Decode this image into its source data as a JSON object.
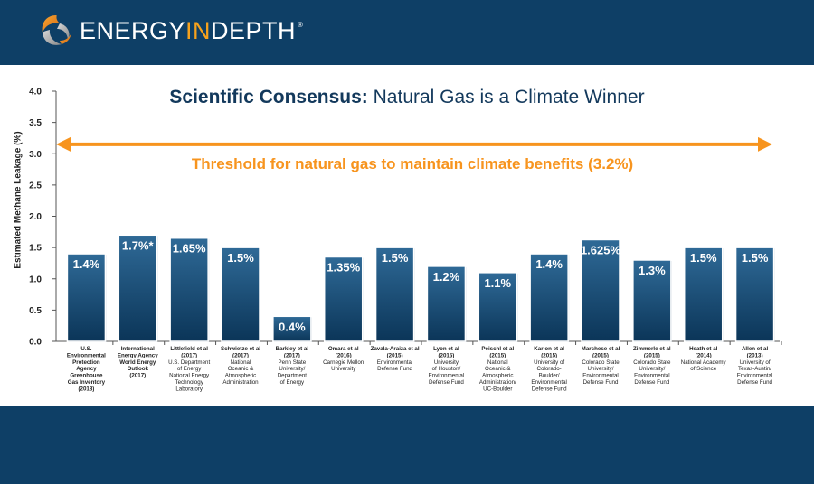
{
  "header": {
    "logo_parts": [
      "ENERGY",
      "IN",
      "DEPTH"
    ],
    "logo_registered": "®"
  },
  "chart_data": {
    "type": "bar",
    "title_bold": "Scientific Consensus:",
    "title_rest": "Natural Gas is a Climate Winner",
    "ylabel": "Estimated Methane Leakage (%)",
    "xlabel": "",
    "ylim": [
      0,
      4.0
    ],
    "yticks": [
      "0.0",
      "0.5",
      "1.0",
      "1.5",
      "2.0",
      "2.5",
      "3.0",
      "3.5",
      "4.0"
    ],
    "threshold": {
      "value": 3.15,
      "label": "Threshold for natural gas to maintain climate benefits (3.2%)"
    },
    "values": [
      1.4,
      1.7,
      1.65,
      1.5,
      0.4,
      1.35,
      1.5,
      1.2,
      1.1,
      1.4,
      1.625,
      1.3,
      1.5,
      1.5
    ],
    "data_labels": [
      "1.4%",
      "1.7%*",
      "1.65%",
      "1.5%",
      "0.4%",
      "1.35%",
      "1.5%",
      "1.2%",
      "1.1%",
      "1.4%",
      "1.625%",
      "1.3%",
      "1.5%",
      "1.5%"
    ],
    "categories": [
      [
        "U.S.",
        "Environmental",
        "Protection",
        "Agency",
        "Greenhouse",
        "Gas Inventory",
        "(2018)"
      ],
      [
        "International",
        "Energy Agency",
        "World Energy",
        "Outlook",
        "(2017)"
      ],
      [
        "Littlefield et al",
        "(2017)",
        "U.S. Department",
        "of Energy",
        "National Energy",
        "Technology",
        "Laboratory"
      ],
      [
        "Schwietze et al",
        "(2017)",
        "National",
        "Oceanic &",
        "Atmospheric",
        "Administration"
      ],
      [
        "Barkley et al",
        "(2017)",
        "Penn State",
        "University/",
        "Department",
        "of Energy"
      ],
      [
        "Omara et al",
        "(2016)",
        "Carnegie Mellon",
        "University"
      ],
      [
        "Zavala-Araiza et al",
        "(2015)",
        "Environmental",
        "Defense Fund"
      ],
      [
        "Lyon et al",
        "(2015)",
        "University",
        "of Houston/",
        "Environmental",
        "Defense Fund"
      ],
      [
        "Peischl et al",
        "(2015)",
        "National",
        "Oceanic &",
        "Atmospheric",
        "Administration/",
        "UC-Boulder"
      ],
      [
        "Karion et al",
        "(2015)",
        "University of",
        "Colorado-",
        "Boulder/",
        "Environmental",
        "Defense Fund"
      ],
      [
        "Marchese et al",
        "(2015)",
        "Colorado State",
        "University/",
        "Environmental",
        "Defense Fund"
      ],
      [
        "Zimmerle et al",
        "(2015)",
        "Colorado State",
        "University/",
        "Environmental",
        "Defense Fund"
      ],
      [
        "Heath et al",
        "(2014)",
        "National Academy",
        "of Science"
      ],
      [
        "Allen et al",
        "(2013)",
        "University of",
        "Texas-Austin/",
        "Environmental",
        "Defense Fund"
      ]
    ],
    "category_bold_lines": [
      7,
      5,
      2,
      2,
      2,
      2,
      2,
      2,
      2,
      2,
      2,
      2,
      2,
      2
    ],
    "colors": {
      "bar_top": "#2f6a97",
      "bar_bottom": "#0b3558",
      "threshold": "#f7941e",
      "band": "#0e3f66"
    }
  }
}
